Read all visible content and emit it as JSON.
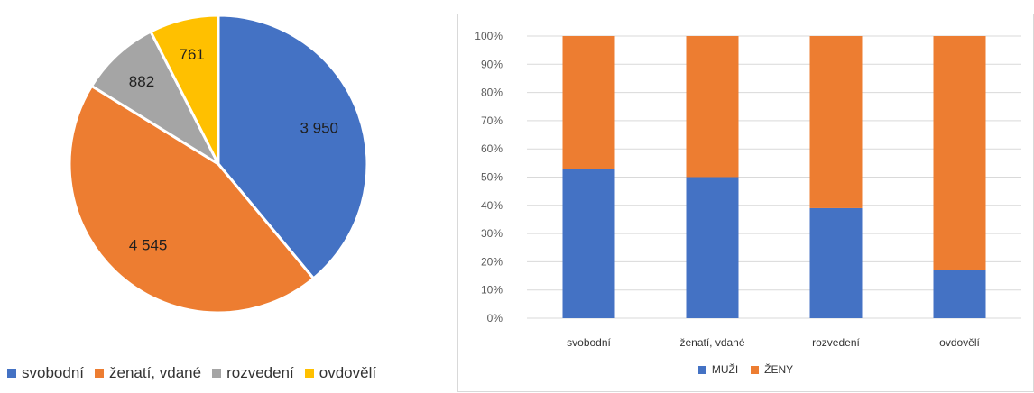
{
  "colors": {
    "blue": "#4472C4",
    "orange": "#ED7D31",
    "gray": "#A5A5A5",
    "yellow": "#FFC000",
    "grid": "#D9D9D9"
  },
  "chart_data": [
    {
      "type": "pie",
      "categories": [
        "svobodní",
        "ženatí, vdané",
        "rozvedení",
        "ovdovělí"
      ],
      "values": [
        3950,
        4545,
        882,
        761
      ],
      "labels": [
        "3 950",
        "4 545",
        "882",
        "761"
      ],
      "colors": [
        "#4472C4",
        "#ED7D31",
        "#A5A5A5",
        "#FFC000"
      ],
      "legend": {
        "position": "bottom",
        "entries": [
          "svobodní",
          "ženatí, vdané",
          "rozvedení",
          "ovdovělí"
        ]
      }
    },
    {
      "type": "bar",
      "stacked": "percent",
      "categories": [
        "svobodní",
        "ženatí, vdané",
        "rozvedení",
        "ovdovělí"
      ],
      "series": [
        {
          "name": "MUŽI",
          "color": "#4472C4",
          "values": [
            53,
            50,
            39,
            17
          ]
        },
        {
          "name": "ŽENY",
          "color": "#ED7D31",
          "values": [
            47,
            50,
            61,
            83
          ]
        }
      ],
      "ylim": [
        0,
        100
      ],
      "yticks": [
        "0%",
        "10%",
        "20%",
        "30%",
        "40%",
        "50%",
        "60%",
        "70%",
        "80%",
        "90%",
        "100%"
      ],
      "grid": true,
      "legend": {
        "position": "bottom",
        "entries": [
          "MUŽI",
          "ŽENY"
        ]
      }
    }
  ]
}
